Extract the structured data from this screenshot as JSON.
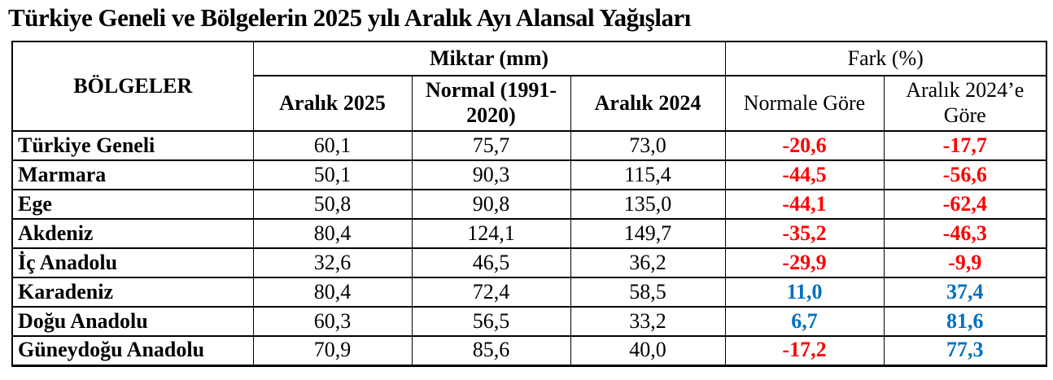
{
  "page": {
    "title": "Türkiye Geneli ve Bölgelerin 2025 yılı Aralık Ayı Alansal Yağışları"
  },
  "colors": {
    "negative_value": "#ff0000",
    "positive_value": "#0070c0",
    "text": "#000000",
    "border": "#000000"
  },
  "chart_data": {
    "type": "table",
    "title": "Türkiye Geneli ve Bölgelerin 2025 yılı Aralık Ayı Alansal Yağışları",
    "corner_header": "BÖLGELER",
    "column_groups": [
      {
        "label": "Miktar (mm)",
        "span": 3
      },
      {
        "label": "Fark (%)",
        "span": 2
      }
    ],
    "columns": [
      "Aralık 2025",
      "Normal (1991-2020)",
      "Aralık 2024",
      "Normale Göre",
      "Aralık 2024’e Göre"
    ],
    "rows": [
      {
        "region": "Türkiye Geneli",
        "miktar": [
          "60,1",
          "75,7",
          "73,0"
        ],
        "fark": [
          "-20,6",
          "-17,7"
        ]
      },
      {
        "region": "Marmara",
        "miktar": [
          "50,1",
          "90,3",
          "115,4"
        ],
        "fark": [
          "-44,5",
          "-56,6"
        ]
      },
      {
        "region": "Ege",
        "miktar": [
          "50,8",
          "90,8",
          "135,0"
        ],
        "fark": [
          "-44,1",
          "-62,4"
        ]
      },
      {
        "region": "Akdeniz",
        "miktar": [
          "80,4",
          "124,1",
          "149,7"
        ],
        "fark": [
          "-35,2",
          "-46,3"
        ]
      },
      {
        "region": "İç Anadolu",
        "miktar": [
          "32,6",
          "46,5",
          "36,2"
        ],
        "fark": [
          "-29,9",
          "-9,9"
        ]
      },
      {
        "region": "Karadeniz",
        "miktar": [
          "80,4",
          "72,4",
          "58,5"
        ],
        "fark": [
          "11,0",
          "37,4"
        ]
      },
      {
        "region": "Doğu Anadolu",
        "miktar": [
          "60,3",
          "56,5",
          "33,2"
        ],
        "fark": [
          "6,7",
          "81,6"
        ]
      },
      {
        "region": "Güneydoğu Anadolu",
        "miktar": [
          "70,9",
          "85,6",
          "40,0"
        ],
        "fark": [
          "-17,2",
          "77,3"
        ]
      }
    ]
  }
}
